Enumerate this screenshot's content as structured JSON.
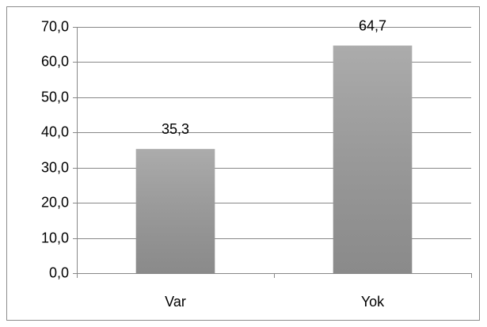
{
  "chart_data": {
    "type": "bar",
    "categories": [
      "Var",
      "Yok"
    ],
    "values": [
      35.3,
      64.7
    ],
    "value_labels": [
      "35,3",
      "64,7"
    ],
    "color": "#9d9d9d",
    "ylim": [
      0,
      70
    ],
    "yticks": [
      {
        "value": 0,
        "label": "0,0"
      },
      {
        "value": 10,
        "label": "10,0"
      },
      {
        "value": 20,
        "label": "20,0"
      },
      {
        "value": 30,
        "label": "30,0"
      },
      {
        "value": 40,
        "label": "40,0"
      },
      {
        "value": 50,
        "label": "50,0"
      },
      {
        "value": 60,
        "label": "60,0"
      },
      {
        "value": 70,
        "label": "70,0"
      }
    ],
    "grid": true
  }
}
